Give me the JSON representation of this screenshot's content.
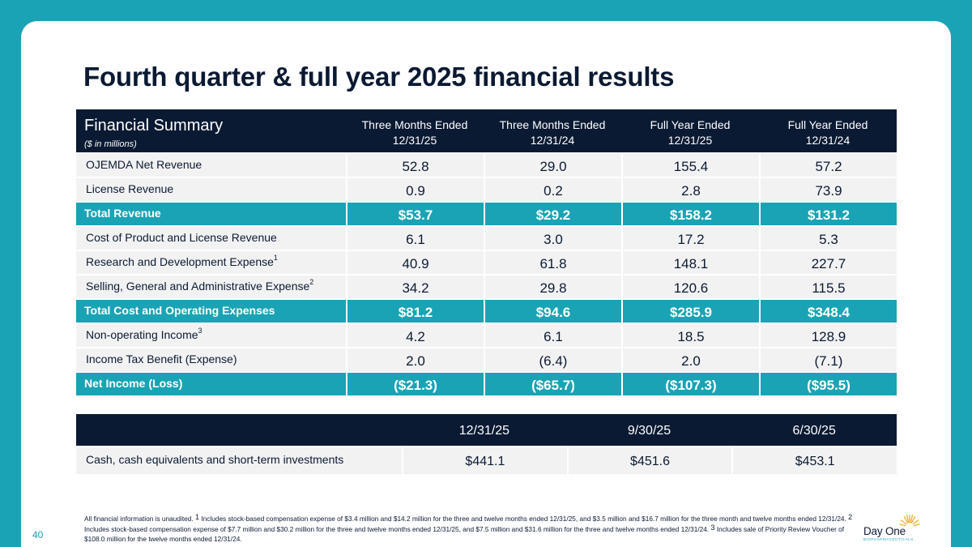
{
  "title": "Fourth quarter & full year 2025 financial results",
  "summary_table": {
    "title": "Financial Summary",
    "subtitle": "($ in millions)",
    "columns": [
      {
        "line1": "Three Months Ended",
        "line2": "12/31/25"
      },
      {
        "line1": "Three Months Ended",
        "line2": "12/31/24"
      },
      {
        "line1": "Full Year Ended",
        "line2": "12/31/25"
      },
      {
        "line1": "Full Year Ended",
        "line2": "12/31/24"
      }
    ],
    "rows": [
      {
        "label": "OJEMDA Net Revenue",
        "sup": "",
        "values": [
          "52.8",
          "29.0",
          "155.4",
          "57.2"
        ]
      },
      {
        "label": "License Revenue",
        "sup": "",
        "values": [
          "0.9",
          "0.2",
          "2.8",
          "73.9"
        ]
      },
      {
        "label": "Total Revenue",
        "sup": "",
        "values": [
          "$53.7",
          "$29.2",
          "$158.2",
          "$131.2"
        ]
      },
      {
        "label": "Cost of Product and License Revenue",
        "sup": "",
        "values": [
          "6.1",
          "3.0",
          "17.2",
          "5.3"
        ]
      },
      {
        "label": "Research and Development Expense",
        "sup": "1",
        "values": [
          "40.9",
          "61.8",
          "148.1",
          "227.7"
        ]
      },
      {
        "label": "Selling, General and Administrative Expense",
        "sup": "2",
        "values": [
          "34.2",
          "29.8",
          "120.6",
          "115.5"
        ]
      },
      {
        "label": "Total Cost and Operating Expenses",
        "sup": "",
        "values": [
          "$81.2",
          "$94.6",
          "$285.9",
          "$348.4"
        ]
      },
      {
        "label": "Non-operating Income",
        "sup": "3",
        "values": [
          "4.2",
          "6.1",
          "18.5",
          "128.9"
        ]
      },
      {
        "label": "Income Tax Benefit (Expense)",
        "sup": "",
        "values": [
          "2.0",
          "(6.4)",
          "2.0",
          "(7.1)"
        ]
      },
      {
        "label": "Net Income (Loss)",
        "sup": "",
        "values": [
          "($21.3)",
          "($65.7)",
          "($107.3)",
          "($95.5)"
        ]
      }
    ]
  },
  "cash_table": {
    "columns": [
      "12/31/25",
      "9/30/25",
      "6/30/25"
    ],
    "row": {
      "label": "Cash, cash equivalents and short-term investments",
      "values": [
        "$441.1",
        "$451.6",
        "$453.1"
      ]
    }
  },
  "footnote": {
    "intro": "All financial information is unaudited. ",
    "n1_mark": "1",
    "n1": " Includes stock-based compensation expense of $3.4 million and $14.2 million for the three and twelve months ended 12/31/25, and $3.5 million and $16.7 million for the three month and twelve months ended 12/31/24. ",
    "n2_mark": "2",
    "n2": " Includes stock-based compensation expense of $7.7 million and $30.2 million for the three and twelve months ended 12/31/25, and $7.5 million and $31.6 million for the three and twelve months ended 12/31/24. ",
    "n3_mark": "3",
    "n3": " Includes sale of Priority Review Voucher of $108.0 million for the twelve months ended 12/31/24."
  },
  "page_number": "40",
  "logo": {
    "name": "Day One",
    "tagline": "BIOPHARMACEUTICALS",
    "sun_color": "#f2b233"
  }
}
